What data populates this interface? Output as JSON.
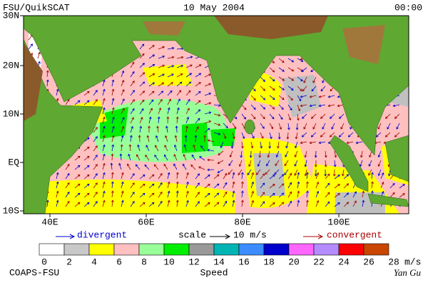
{
  "header": {
    "title": "FSU/QuikSCAT",
    "date": "10 May 2004",
    "time": "00:00"
  },
  "map": {
    "lat_labels": [
      "30N",
      "20N",
      "10N",
      "EQ",
      "10S"
    ],
    "lon_labels": [
      "40E",
      "60E",
      "80E",
      "100E"
    ]
  },
  "legend": {
    "divergent": "divergent",
    "scale": "scale",
    "scale_value": "10 m/s",
    "convergent": "convergent"
  },
  "colorbar": {
    "labels": [
      0,
      2,
      4,
      6,
      8,
      10,
      12,
      14,
      16,
      18,
      20,
      22,
      24,
      26,
      28
    ],
    "unit": "m/s",
    "title": "Speed"
  },
  "footer": {
    "left": "COAPS-FSU",
    "right": "Yan Gu"
  }
}
